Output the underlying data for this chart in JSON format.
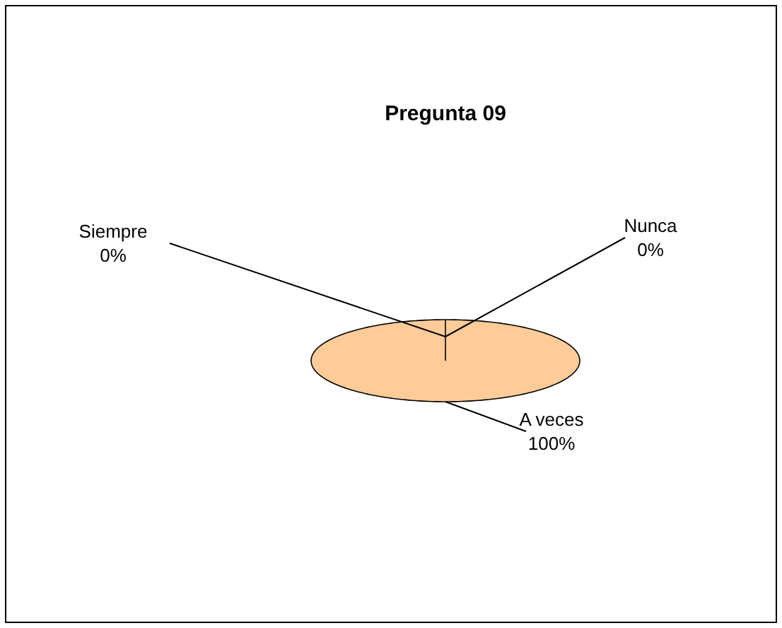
{
  "chart_data": {
    "type": "pie",
    "title": "Pregunta 09",
    "categories": [
      "Siempre",
      "A veces",
      "Nunca"
    ],
    "values": [
      0,
      100,
      0
    ],
    "colors": [
      null,
      "#ffcc99",
      null
    ],
    "value_labels": [
      "0%",
      "100%",
      "0%"
    ]
  }
}
